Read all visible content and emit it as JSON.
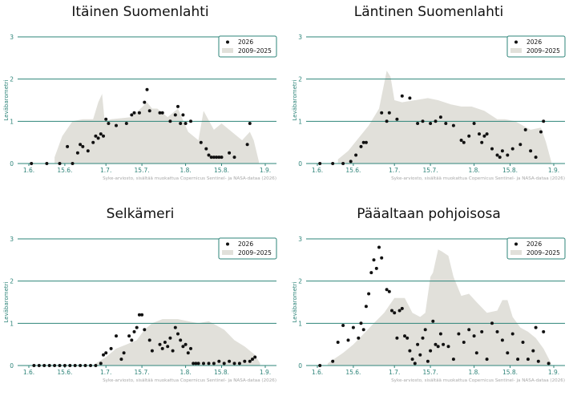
{
  "colors": {
    "accent": "#2e8479",
    "band": "#e1e0da",
    "point": "#111111",
    "source": "#a8a8a8"
  },
  "ylabel": "Leväbarometri",
  "legend": {
    "points": "2026",
    "band": "2009–2025",
    "position": "top-right"
  },
  "source": "Syke-arviosto, sisältää muokattua Copernicus Sentinel- ja NASA-dataa (2026)",
  "chart_data": [
    {
      "type": "scatter",
      "title": "Itäinen Suomenlahti",
      "ylabel": "Leväbarometri",
      "xlim": [
        0,
        92
      ],
      "ylim": [
        0,
        3
      ],
      "xticks": [
        {
          "x": 0,
          "label": "1.6."
        },
        {
          "x": 14,
          "label": "15.6."
        },
        {
          "x": 30,
          "label": "1.7."
        },
        {
          "x": 44,
          "label": "15.7."
        },
        {
          "x": 61,
          "label": "1.8."
        },
        {
          "x": 75,
          "label": "15.8."
        },
        {
          "x": 92,
          "label": "1.9."
        }
      ],
      "yticks": [
        0,
        1,
        2,
        3
      ],
      "band": {
        "name": "2009–2025",
        "x": [
          10,
          13,
          17,
          21,
          25,
          27,
          28.5,
          29.5,
          32,
          40,
          46,
          48,
          50,
          54,
          58,
          62,
          66,
          68,
          72,
          75,
          79,
          83,
          86,
          87.5,
          89.5
        ],
        "y": [
          0.15,
          0.65,
          1.0,
          1.05,
          1.05,
          1.45,
          1.65,
          1.0,
          1.05,
          1.1,
          1.45,
          1.3,
          1.3,
          1.1,
          1.3,
          0.75,
          0.55,
          1.25,
          0.8,
          0.95,
          0.75,
          0.55,
          0.75,
          0.55,
          0.05
        ]
      },
      "series": [
        {
          "name": "2026",
          "x": [
            1,
            7,
            12,
            15,
            17,
            19,
            20,
            21,
            23,
            25,
            26,
            27,
            28,
            29,
            30,
            31,
            34,
            38,
            40,
            41,
            43,
            45,
            46,
            47,
            51,
            52,
            55,
            57,
            58,
            59,
            60,
            61,
            63,
            67,
            69,
            70,
            71,
            72,
            73,
            74,
            75,
            78,
            80,
            85,
            86
          ],
          "y": [
            0,
            0,
            0,
            0.4,
            0,
            0.25,
            0.45,
            0.4,
            0.3,
            0.5,
            0.65,
            0.6,
            0.7,
            0.65,
            1.05,
            0.95,
            0.9,
            0.95,
            1.15,
            1.2,
            1.2,
            1.45,
            1.75,
            1.25,
            1.2,
            1.2,
            1.0,
            1.15,
            1.35,
            0.95,
            1.15,
            0.95,
            1.0,
            0.5,
            0.35,
            0.2,
            0.15,
            0.15,
            0.15,
            0.15,
            0.15,
            0.25,
            0.15,
            0.45,
            0.95
          ]
        }
      ]
    },
    {
      "type": "scatter",
      "title": "Läntinen Suomenlahti",
      "ylabel": "Leväbarometri",
      "xlim": [
        0,
        92
      ],
      "ylim": [
        0,
        3
      ],
      "xticks": [
        {
          "x": 0,
          "label": "1.6."
        },
        {
          "x": 14,
          "label": "15.6."
        },
        {
          "x": 30,
          "label": "1.7."
        },
        {
          "x": 44,
          "label": "15.7."
        },
        {
          "x": 61,
          "label": "1.8."
        },
        {
          "x": 75,
          "label": "15.8."
        },
        {
          "x": 92,
          "label": "1.9."
        }
      ],
      "yticks": [
        0,
        1,
        2,
        3
      ],
      "band": {
        "name": "2009–2025",
        "x": [
          8,
          12,
          16,
          20,
          24,
          27,
          28.5,
          30,
          33,
          38,
          43,
          47,
          52,
          56,
          60,
          65,
          70,
          73,
          77,
          80,
          83,
          87,
          89,
          91
        ],
        "y": [
          0.1,
          0.3,
          0.6,
          0.9,
          1.3,
          2.2,
          2.05,
          1.5,
          1.45,
          1.5,
          1.55,
          1.5,
          1.4,
          1.35,
          1.35,
          1.25,
          1.05,
          1.05,
          1.0,
          0.9,
          0.8,
          0.85,
          0.5,
          0.05
        ]
      },
      "series": [
        {
          "name": "2026",
          "x": [
            1,
            6,
            10,
            13,
            15,
            17,
            18,
            19,
            25,
            27,
            28,
            31,
            33,
            36,
            39,
            41,
            44,
            46,
            48,
            50,
            53,
            56,
            57,
            59,
            61,
            63,
            64,
            65,
            66,
            68,
            70,
            71,
            72,
            74,
            76,
            79,
            81,
            83,
            85,
            87,
            88
          ],
          "y": [
            0,
            0,
            0,
            0.05,
            0.2,
            0.4,
            0.5,
            0.5,
            1.2,
            1.0,
            1.2,
            1.05,
            1.6,
            1.55,
            0.95,
            1.0,
            0.95,
            1.0,
            1.1,
            0.95,
            0.9,
            0.55,
            0.5,
            0.65,
            0.95,
            0.7,
            0.5,
            0.65,
            0.7,
            0.35,
            0.2,
            0.15,
            0.3,
            0.2,
            0.35,
            0.45,
            0.8,
            0.3,
            0.15,
            0.75,
            1.0
          ]
        }
      ]
    },
    {
      "type": "scatter",
      "title": "Selkämeri",
      "ylabel": "Leväbarometri",
      "xlim": [
        0,
        92
      ],
      "ylim": [
        0,
        3
      ],
      "xticks": [
        {
          "x": 0,
          "label": "1.6."
        },
        {
          "x": 14,
          "label": "15.6."
        },
        {
          "x": 30,
          "label": "1.7."
        },
        {
          "x": 44,
          "label": "15.7."
        },
        {
          "x": 61,
          "label": "1.8."
        },
        {
          "x": 75,
          "label": "15.8."
        },
        {
          "x": 92,
          "label": "1.9."
        }
      ],
      "yticks": [
        0,
        1,
        2,
        3
      ],
      "band": {
        "name": "2009–2025",
        "x": [
          26,
          30,
          34,
          38,
          42,
          45,
          48,
          52,
          55,
          58,
          62,
          66,
          70,
          73,
          76,
          80,
          84,
          88,
          90
        ],
        "y": [
          0.05,
          0.2,
          0.4,
          0.5,
          0.6,
          0.85,
          1.0,
          1.1,
          1.1,
          1.1,
          1.05,
          1.0,
          1.05,
          0.95,
          0.85,
          0.6,
          0.45,
          0.25,
          0.05
        ]
      },
      "series": [
        {
          "name": "2026",
          "x": [
            2,
            4,
            6,
            8,
            10,
            12,
            14,
            16,
            18,
            20,
            22,
            24,
            26,
            28,
            29,
            30,
            32,
            34,
            36,
            37,
            39,
            40,
            41,
            42,
            43,
            44,
            45,
            47,
            48,
            51,
            52,
            53,
            54,
            55,
            56,
            57,
            58,
            59,
            60,
            61,
            62,
            63,
            64,
            65,
            66,
            68,
            70,
            72,
            74,
            76,
            78,
            80,
            82,
            84,
            86,
            87,
            88
          ],
          "y": [
            0,
            0,
            0,
            0,
            0,
            0,
            0,
            0,
            0,
            0,
            0,
            0,
            0,
            0.05,
            0.25,
            0.3,
            0.4,
            0.7,
            0.15,
            0.3,
            0.7,
            0.6,
            0.8,
            0.9,
            1.2,
            1.2,
            0.85,
            0.6,
            0.35,
            0.5,
            0.4,
            0.55,
            0.45,
            0.65,
            0.35,
            0.9,
            0.75,
            0.6,
            0.45,
            0.5,
            0.3,
            0.4,
            0.05,
            0.05,
            0.05,
            0.05,
            0.05,
            0.05,
            0.1,
            0.05,
            0.1,
            0.05,
            0.05,
            0.1,
            0.1,
            0.15,
            0.2
          ]
        }
      ]
    },
    {
      "type": "scatter",
      "title": "Pääaltaan pohjoisosa",
      "ylabel": "Leväbarometri",
      "xlim": [
        0,
        92
      ],
      "ylim": [
        0,
        3
      ],
      "xticks": [
        {
          "x": 0,
          "label": "1.6."
        },
        {
          "x": 14,
          "label": "15.6."
        },
        {
          "x": 30,
          "label": "1.7."
        },
        {
          "x": 44,
          "label": "15.7."
        },
        {
          "x": 61,
          "label": "1.8."
        },
        {
          "x": 75,
          "label": "15.8."
        },
        {
          "x": 92,
          "label": "1.9."
        }
      ],
      "yticks": [
        0,
        1,
        2,
        3
      ],
      "band": {
        "name": "2009–2025",
        "x": [
          4,
          10,
          14,
          18,
          22,
          26,
          30,
          34,
          37,
          40,
          42,
          44,
          45,
          47,
          48.5,
          51,
          53,
          56,
          59,
          62,
          66,
          70,
          72,
          74,
          76,
          79,
          82,
          85,
          88,
          91
        ],
        "y": [
          0.05,
          0.3,
          0.5,
          0.75,
          1.0,
          1.25,
          1.6,
          1.6,
          1.25,
          1.15,
          1.25,
          2.1,
          2.2,
          2.75,
          2.7,
          2.6,
          2.1,
          1.65,
          1.7,
          1.5,
          1.25,
          1.3,
          1.55,
          1.55,
          1.15,
          0.9,
          0.8,
          0.65,
          0.4,
          0.05
        ]
      },
      "series": [
        {
          "name": "2026",
          "x": [
            1,
            6,
            8,
            10,
            12,
            14,
            16,
            17,
            18,
            19,
            20,
            21,
            22,
            23,
            24,
            25,
            27,
            28,
            29,
            30,
            31,
            32,
            33,
            34,
            35,
            36,
            37,
            38,
            39,
            40,
            41,
            42,
            43,
            44,
            45,
            46,
            47,
            48,
            49,
            51,
            53,
            55,
            57,
            59,
            61,
            62,
            64,
            66,
            68,
            70,
            72,
            74,
            76,
            78,
            80,
            82,
            84,
            85,
            86,
            88,
            90
          ],
          "y": [
            0,
            0.1,
            0.55,
            0.95,
            0.6,
            0.9,
            0.65,
            1.0,
            0.85,
            1.4,
            1.7,
            2.2,
            2.5,
            2.3,
            2.8,
            2.55,
            1.8,
            1.75,
            1.3,
            1.25,
            0.65,
            1.3,
            1.35,
            0.7,
            0.65,
            0.35,
            0.15,
            0.05,
            0.5,
            0.25,
            0.65,
            0.85,
            0.1,
            0.35,
            1.05,
            0.5,
            0.45,
            0.75,
            0.5,
            0.45,
            0.15,
            0.75,
            0.55,
            0.85,
            0.7,
            0.3,
            0.8,
            0.15,
            1.0,
            0.8,
            0.6,
            0.3,
            0.75,
            0.15,
            0.55,
            0.15,
            0.35,
            0.9,
            0.1,
            0.8,
            0.05
          ]
        }
      ]
    }
  ]
}
